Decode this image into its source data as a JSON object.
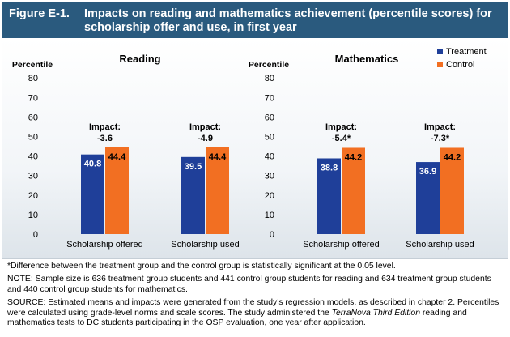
{
  "figure": {
    "number": "Figure E-1.",
    "title": "Impacts on reading and mathematics achievement (percentile scores) for scholarship offer and use, in first year"
  },
  "legend": [
    {
      "label": "Treatment",
      "color": "#1f3f99"
    },
    {
      "label": "Control",
      "color": "#f26f22"
    }
  ],
  "chart_data": [
    {
      "type": "bar",
      "title": "Reading",
      "ylabel": "Percentile",
      "ylim": [
        0,
        80
      ],
      "yticks": [
        "0",
        "10",
        "20",
        "30",
        "40",
        "50",
        "60",
        "70",
        "80"
      ],
      "categories": [
        "Scholarship offered",
        "Scholarship used"
      ],
      "series": [
        {
          "name": "Treatment",
          "values": [
            40.8,
            39.5
          ],
          "labels": [
            "40.8",
            "39.5"
          ]
        },
        {
          "name": "Control",
          "values": [
            44.4,
            44.4
          ],
          "labels": [
            "44.4",
            "44.4"
          ]
        }
      ],
      "impacts": [
        "-3.6",
        "-4.9"
      ],
      "impact_label": "Impact:"
    },
    {
      "type": "bar",
      "title": "Mathematics",
      "ylabel": "Percentile",
      "ylim": [
        0,
        80
      ],
      "yticks": [
        "0",
        "10",
        "20",
        "30",
        "40",
        "50",
        "60",
        "70",
        "80"
      ],
      "categories": [
        "Scholarship offered",
        "Scholarship used"
      ],
      "series": [
        {
          "name": "Treatment",
          "values": [
            38.8,
            36.9
          ],
          "labels": [
            "38.8",
            "36.9"
          ]
        },
        {
          "name": "Control",
          "values": [
            44.2,
            44.2
          ],
          "labels": [
            "44.2",
            "44.2"
          ]
        }
      ],
      "impacts": [
        "-5.4*",
        "-7.3*"
      ],
      "impact_label": "Impact:"
    }
  ],
  "notes": {
    "significance": "*Difference between the treatment group and the control group is statistically significant at the 0.05 level.",
    "note": "NOTE: Sample size is 636 treatment group students and 441 control group students for reading and 634 treatment group students and 440 control group students for mathematics.",
    "source_a": "SOURCE: Estimated means and impacts were generated from the study’s regression models, as described in chapter 2. Percentiles were calculated using grade-level norms and scale scores. The study administered the ",
    "source_italic": "TerraNova Third Edition",
    "source_b": " reading and mathematics tests to DC students participating in the OSP evaluation, one year after application."
  }
}
